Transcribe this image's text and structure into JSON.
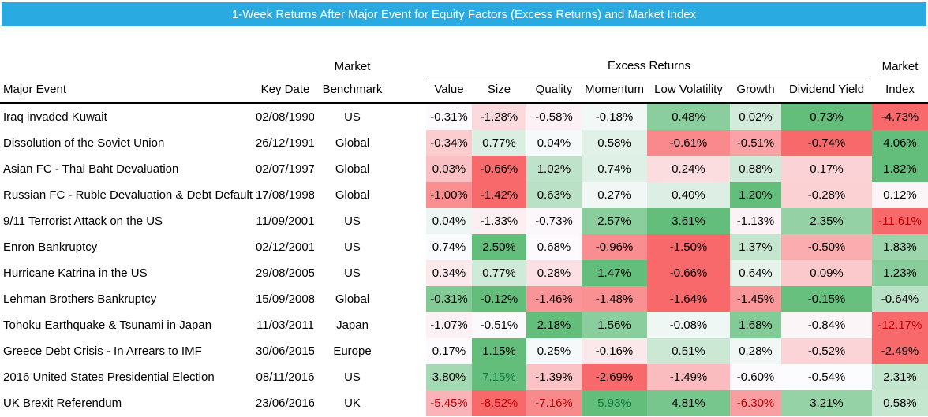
{
  "title_bar": {
    "text": "1-Week Returns After Major Event for Equity Factors (Excess Returns) and Market Index",
    "bg": "#29ABE2",
    "text_color": "#FFFFFF"
  },
  "table": {
    "group_headers": {
      "benchmark_top": "Market",
      "excess": "Excess Returns",
      "market_top": "Market"
    },
    "columns": {
      "event": "Major Event",
      "date": "Key Date",
      "benchmark": "Benchmark",
      "factors": [
        "Value",
        "Size",
        "Quality",
        "Momentum",
        "Low Volatility",
        "Growth",
        "Dividend Yield"
      ],
      "market": "Index"
    }
  },
  "chart_data": {
    "type": "heatmap",
    "title": "1-Week Returns After Major Event for Equity Factors (Excess Returns) and Market Index",
    "row_label_columns": [
      "Major Event",
      "Key Date",
      "Market Benchmark"
    ],
    "value_columns": [
      "Value",
      "Size",
      "Quality",
      "Momentum",
      "Low Volatility",
      "Growth",
      "Dividend Yield",
      "Market Index"
    ],
    "value_format": "percent_2dp",
    "color_scale": {
      "scope": "per-row",
      "midpoint": "median",
      "min_color": "#F8696B",
      "mid_color": "#FCFCFF",
      "max_color": "#63BE7B"
    },
    "font_color_rules": {
      "red_below": -5,
      "red_color": "#C00000",
      "green_above": 5,
      "green_color": "#107C41"
    },
    "rows": [
      {
        "event": "Iraq invaded Kuwait",
        "date": "02/08/1990",
        "benchmark": "US",
        "values": [
          -0.31,
          -1.28,
          -0.58,
          -0.18,
          0.48,
          0.02,
          0.73,
          -4.73
        ]
      },
      {
        "event": "Dissolution of the Soviet Union",
        "date": "26/12/1991",
        "benchmark": "Global",
        "values": [
          -0.34,
          0.77,
          0.04,
          0.58,
          -0.61,
          -0.51,
          -0.74,
          4.06
        ]
      },
      {
        "event": "Asian FC - Thai Baht Devaluation",
        "date": "02/07/1997",
        "benchmark": "Global",
        "values": [
          0.03,
          -0.66,
          1.02,
          0.74,
          0.24,
          0.88,
          0.17,
          1.82
        ]
      },
      {
        "event": "Russian FC - Ruble Devaluation & Debt Default",
        "date": "17/08/1998",
        "benchmark": "Global",
        "values": [
          -1.0,
          -1.42,
          0.63,
          0.27,
          0.4,
          1.2,
          -0.28,
          0.12
        ]
      },
      {
        "event": "9/11 Terrorist Attack on the US",
        "date": "11/09/2001",
        "benchmark": "US",
        "values": [
          0.04,
          -1.33,
          -0.73,
          2.57,
          3.61,
          -1.13,
          2.35,
          -11.61
        ]
      },
      {
        "event": "Enron Bankruptcy",
        "date": "02/12/2001",
        "benchmark": "US",
        "values": [
          0.74,
          2.5,
          0.68,
          -0.96,
          -1.5,
          1.37,
          -0.5,
          1.83
        ]
      },
      {
        "event": "Hurricane Katrina in the US",
        "date": "29/08/2005",
        "benchmark": "US",
        "values": [
          0.34,
          0.77,
          0.28,
          1.47,
          -0.66,
          0.64,
          0.09,
          1.23
        ]
      },
      {
        "event": "Lehman Brothers Bankruptcy",
        "date": "15/09/2008",
        "benchmark": "Global",
        "values": [
          -0.31,
          -0.12,
          -1.46,
          -1.48,
          -1.64,
          -1.45,
          -0.15,
          -0.64
        ]
      },
      {
        "event": "Tohoku Earthquake & Tsunami in Japan",
        "date": "11/03/2011",
        "benchmark": "Japan",
        "values": [
          -1.07,
          -0.51,
          2.18,
          1.56,
          -0.08,
          1.68,
          -0.84,
          -12.17
        ]
      },
      {
        "event": "Greece Debt Crisis - In Arrears to IMF",
        "date": "30/06/2015",
        "benchmark": "Europe",
        "values": [
          0.17,
          1.15,
          0.25,
          -0.16,
          0.51,
          0.28,
          -0.52,
          -2.49
        ]
      },
      {
        "event": "2016 United States Presidential Election",
        "date": "08/11/2016",
        "benchmark": "US",
        "values": [
          3.8,
          7.15,
          -1.39,
          -2.69,
          -1.49,
          -0.6,
          -0.54,
          2.31
        ]
      },
      {
        "event": "UK Brexit Referendum",
        "date": "23/06/2016",
        "benchmark": "UK",
        "values": [
          -5.45,
          -8.52,
          -7.16,
          5.93,
          4.81,
          -6.3,
          3.21,
          0.58
        ]
      }
    ]
  }
}
